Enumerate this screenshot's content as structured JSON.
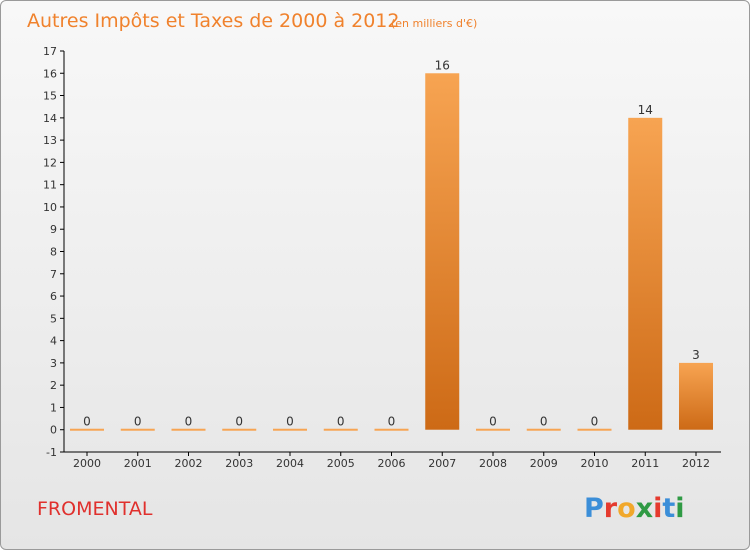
{
  "page": {
    "title": "Autres Impôts et Taxes de 2000 à 2012",
    "unit": "(en milliers d'€)",
    "commune": "FROMENTAL",
    "logo_text": "Proxiti",
    "colors": {
      "bar_light": "#f7a452",
      "bar_dark": "#cd6a16",
      "title": "#f0822d",
      "commune": "#e0302d",
      "logo": [
        "#3b8ed8",
        "#e53a2e",
        "#f1a82b",
        "#2f9a44",
        "#e53a2e",
        "#3b8ed8",
        "#2f9a44"
      ]
    }
  },
  "chart_data": {
    "type": "bar",
    "title": "Autres Impôts et Taxes de 2000 à 2012",
    "subtitle": "(en milliers d'€)",
    "categories": [
      "2000",
      "2001",
      "2002",
      "2003",
      "2004",
      "2005",
      "2006",
      "2007",
      "2008",
      "2009",
      "2010",
      "2011",
      "2012"
    ],
    "values": [
      0,
      0,
      0,
      0,
      0,
      0,
      0,
      16,
      0,
      0,
      0,
      14,
      3
    ],
    "data_labels": [
      "0",
      "0",
      "0",
      "0",
      "0",
      "0",
      "0",
      "16",
      "0",
      "0",
      "0",
      "14",
      "3"
    ],
    "y_ticks": [
      "-1",
      "0",
      "1",
      "2",
      "3",
      "4",
      "5",
      "6",
      "7",
      "8",
      "9",
      "10",
      "11",
      "12",
      "13",
      "14",
      "15",
      "16",
      "17"
    ],
    "xlabel": "",
    "ylabel": "",
    "ylim": [
      -1,
      17
    ],
    "grid": false,
    "legend": "none"
  }
}
